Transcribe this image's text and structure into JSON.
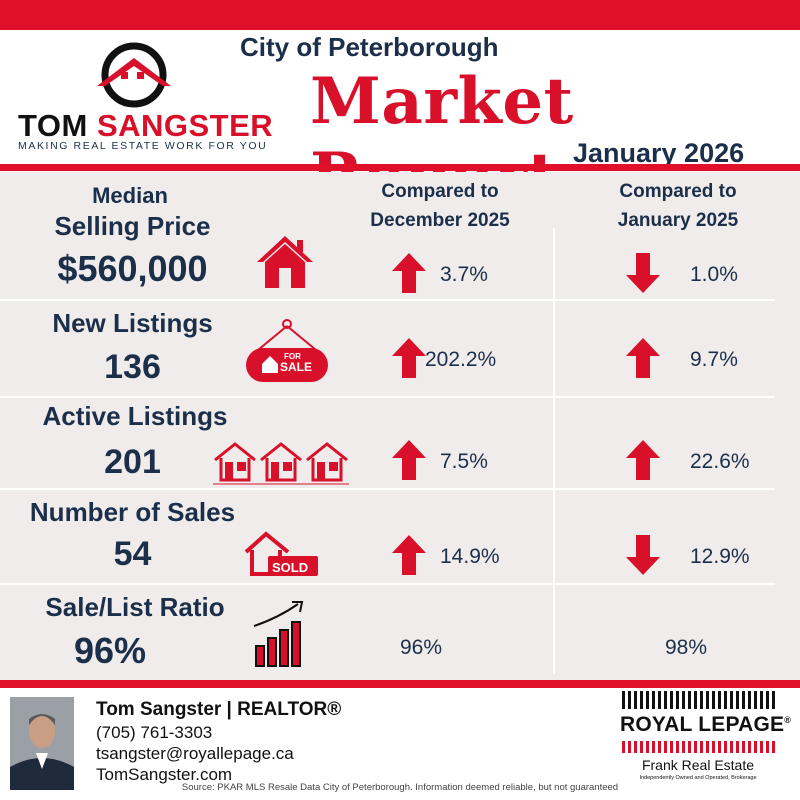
{
  "brand": {
    "name_first": "TOM",
    "name_last": "SANGSTER",
    "tagline": "MAKING REAL ESTATE WORK FOR YOU"
  },
  "header": {
    "city": "City of Peterborough",
    "title": "Market Report",
    "date": "January 2026"
  },
  "columns": {
    "compare_1_line1": "Compared to",
    "compare_1_line2": "December 2025",
    "compare_2_line1": "Compared to",
    "compare_2_line2": "January 2025"
  },
  "metrics": [
    {
      "label_line1": "Median",
      "label_line2": "Selling Price",
      "value": "$560,000",
      "icon": "house-icon",
      "mom": "3.7%",
      "mom_dir": "up",
      "yoy": "1.0%",
      "yoy_dir": "down"
    },
    {
      "label_line1": "New Listings",
      "value": "136",
      "icon": "for-sale-sign-icon",
      "icon_text_1": "FOR",
      "icon_text_2": "SALE",
      "mom": "202.2%",
      "mom_dir": "up",
      "yoy": "9.7%",
      "yoy_dir": "up"
    },
    {
      "label_line1": "Active Listings",
      "value": "201",
      "icon": "three-houses-icon",
      "mom": "7.5%",
      "mom_dir": "up",
      "yoy": "22.6%",
      "yoy_dir": "up"
    },
    {
      "label_line1": "Number of Sales",
      "value": "54",
      "icon": "sold-house-icon",
      "icon_text_1": "SOLD",
      "mom": "14.9%",
      "mom_dir": "up",
      "yoy": "12.9%",
      "yoy_dir": "down"
    },
    {
      "label_line1": "Sale/List Ratio",
      "value": "96%",
      "icon": "bar-growth-icon",
      "mom": "96%",
      "mom_dir": "none",
      "yoy": "98%",
      "yoy_dir": "none"
    }
  ],
  "agent": {
    "name": "Tom Sangster | REALTOR®",
    "phone": "(705) 761-3303",
    "email": "tsangster@royallepage.ca",
    "website": "TomSangster.com"
  },
  "brokerage": {
    "brand": "ROYAL LEPAGE",
    "registered": "®",
    "office": "Frank Real Estate",
    "office_sub": "Independently Owned and Operated, Brokerage"
  },
  "source": "Source: PKAR MLS Resale Data City of Peterborough. Information deemed reliable, but not guaranteed",
  "colors": {
    "accent": "#e0102a",
    "navy": "#1c2f4a",
    "panel": "#efeceb"
  }
}
